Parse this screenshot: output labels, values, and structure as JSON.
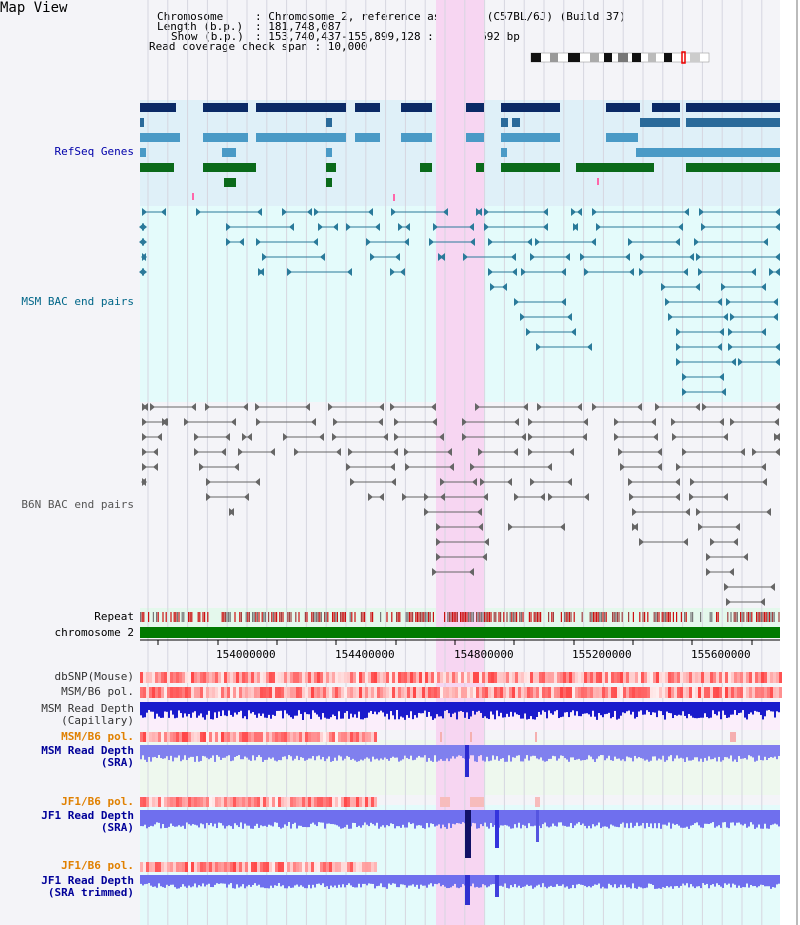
{
  "app_title": "Map View",
  "header": {
    "chromosome_key": "Chromosome",
    "chromosome_val": ": Chromosome 2, reference assembly (C57BL/6J) (Build 37)",
    "length_key": "Length (b.p.)",
    "length_val": ": 181,748,087",
    "show_key": "Show (b.p.)",
    "show_val": ": 153,740,437-155,899,128 : 2,158,692 bp",
    "coverage_label": "Read coverage check span : 10,000"
  },
  "labels": {
    "refseq": "RefSeq Genes",
    "msm_bac": "MSM BAC end pairs",
    "b6n_bac": "B6N BAC end pairs",
    "repeat": "Repeat",
    "chromosome": "chromosome 2",
    "dbsnp": "dbSNP(Mouse)",
    "msm_b6_pol_1": "MSM/B6 pol.",
    "msm_read_depth_cap_1": "MSM Read Depth",
    "msm_read_depth_cap_2": "(Capillary)",
    "msm_b6_pol_2": "MSM/B6 pol.",
    "msm_read_depth_sra_1": "MSM Read Depth",
    "msm_read_depth_sra_2": "(SRA)",
    "jf1_b6_pol_1": "JF1/B6 pol.",
    "jf1_read_depth_1": "JF1 Read Depth",
    "jf1_read_depth_2": "(SRA)",
    "jf1_b6_pol_2": "JF1/B6 pol.",
    "jf1_read_depth_trim_1": "JF1 Read Depth",
    "jf1_read_depth_trim_2": "(SRA trimmed)"
  },
  "axis_ticks": [
    "154000000",
    "154400000",
    "154800000",
    "155200000",
    "155600000"
  ],
  "colors": {
    "refseq_label": "#0000aa",
    "msm_label": "#006688",
    "b6n_label": "#555555",
    "pol_orange": "#e08000",
    "depth_blue": "#000099",
    "highlight": "#f7d6f2"
  }
}
